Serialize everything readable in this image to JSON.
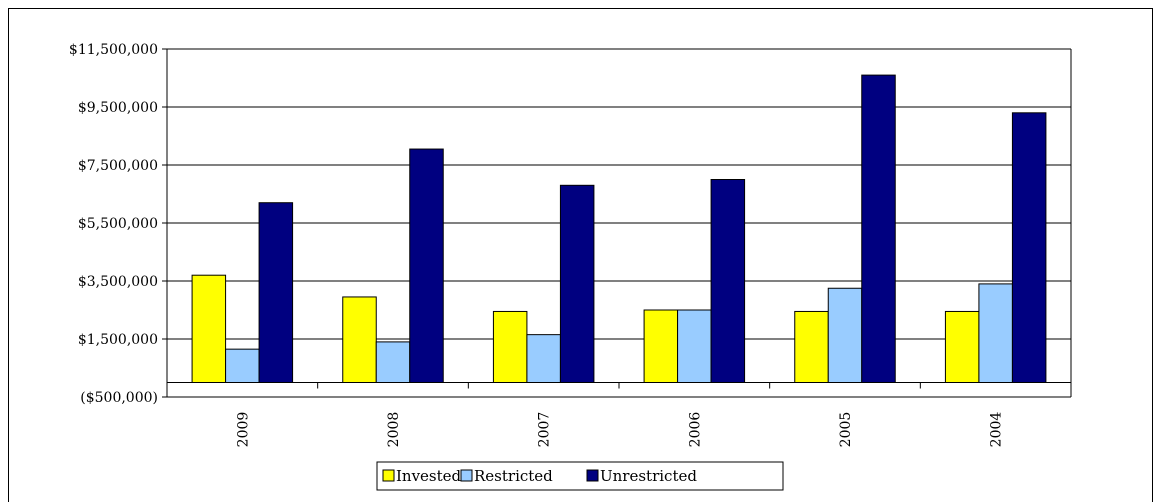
{
  "chart_data": {
    "type": "bar",
    "title": "",
    "xlabel": "",
    "ylabel": "",
    "categories": [
      "2009",
      "2008",
      "2007",
      "2006",
      "2005",
      "2004"
    ],
    "series": [
      {
        "name": "Invested",
        "color": "#FFFF00",
        "values": [
          3700000,
          2950000,
          2450000,
          2500000,
          2450000,
          2450000
        ]
      },
      {
        "name": "Restricted",
        "color": "#99CCFF",
        "values": [
          1150000,
          1400000,
          1650000,
          2500000,
          3250000,
          3400000
        ]
      },
      {
        "name": "Unrestricted",
        "color": "#000080",
        "values": [
          6200000,
          8050000,
          6800000,
          7000000,
          10600000,
          9300000
        ]
      }
    ],
    "ylim": [
      -500000,
      11500000
    ],
    "yticks": [
      -500000,
      1500000,
      3500000,
      5500000,
      7500000,
      9500000,
      11500000
    ],
    "ytick_labels": [
      "($500,000)",
      "$1,500,000",
      "$3,500,000",
      "$5,500,000",
      "$7,500,000",
      "$9,500,000",
      "$11,500,000"
    ],
    "grid": true,
    "legend_position": "bottom"
  }
}
